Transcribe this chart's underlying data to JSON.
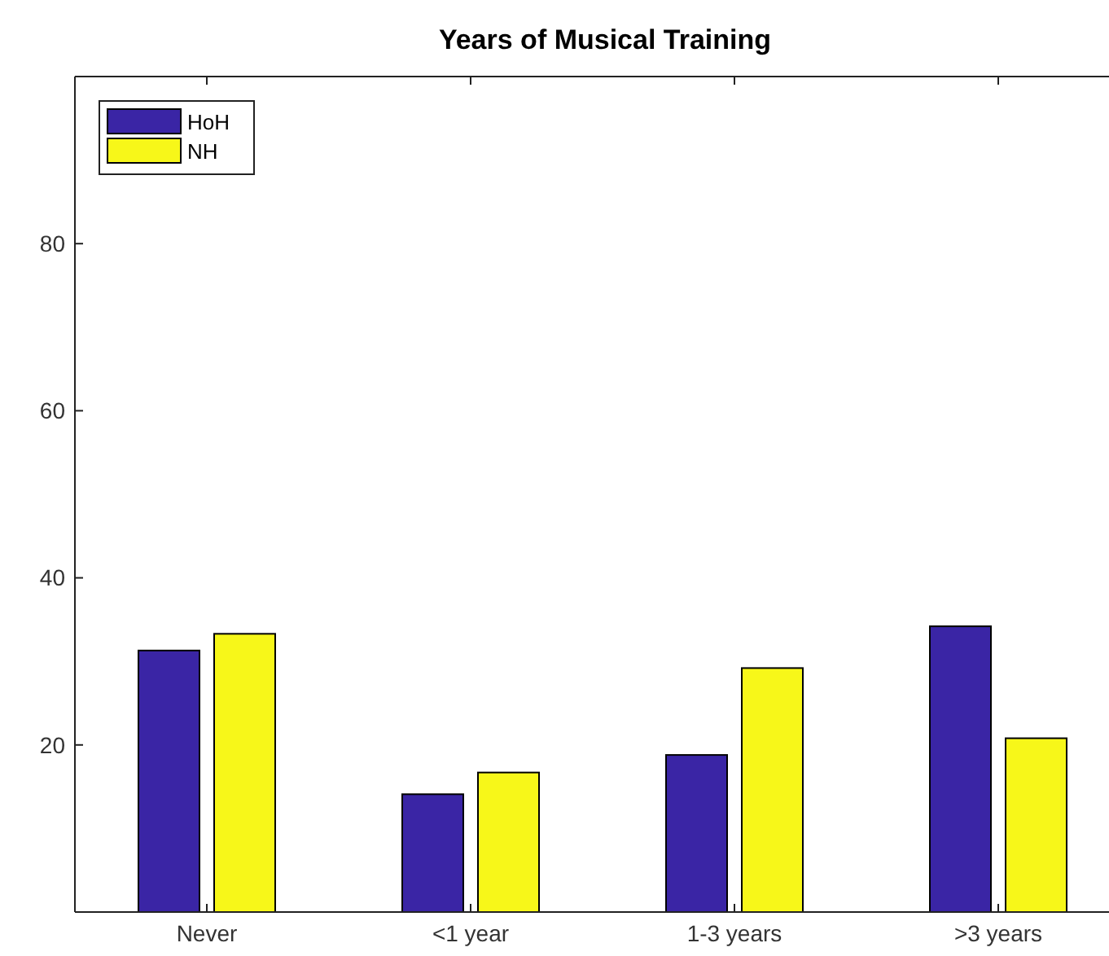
{
  "chart_data": {
    "type": "bar",
    "title": "Years of Musical Training",
    "categories": [
      "Never",
      "<1 year",
      "1-3 years",
      ">3 years"
    ],
    "series": [
      {
        "name": "HoH",
        "color": "#3a25a5",
        "values": [
          31.3,
          14.1,
          18.8,
          34.2
        ]
      },
      {
        "name": "NH",
        "color": "#f7f719",
        "values": [
          33.3,
          16.7,
          29.2,
          20.8
        ]
      }
    ],
    "ylim": [
      0,
      100
    ],
    "yticks": [
      20,
      40,
      60,
      80
    ],
    "legend": "top left",
    "grid": false
  }
}
